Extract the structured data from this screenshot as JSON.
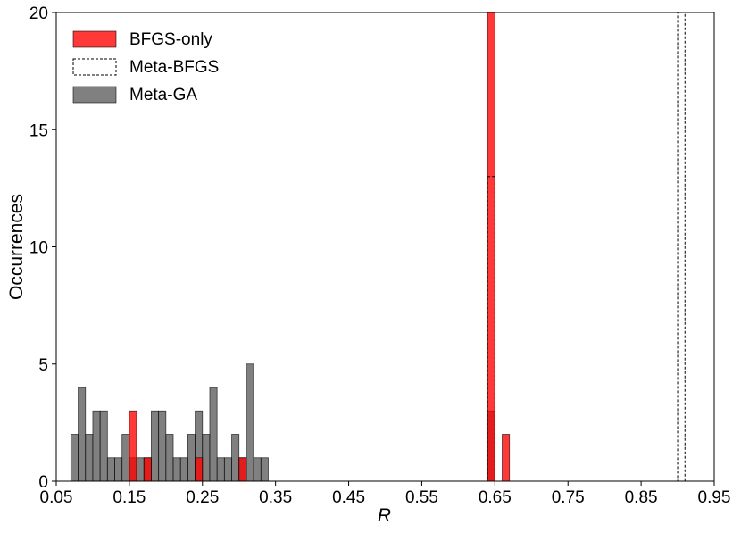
{
  "chart_data": {
    "type": "bar",
    "subtype": "histogram",
    "xlabel": "R",
    "ylabel": "Occurrences",
    "xlim": [
      0.05,
      0.95
    ],
    "ylim": [
      0,
      20
    ],
    "xticks": [
      "0.05",
      "0.15",
      "0.25",
      "0.35",
      "0.45",
      "0.55",
      "0.65",
      "0.75",
      "0.85",
      "0.95"
    ],
    "yticks": [
      "0",
      "5",
      "10",
      "15",
      "20"
    ],
    "bin_width": 0.01,
    "grid": false,
    "legend_position": "top-left",
    "series": [
      {
        "name": "BFGS-only",
        "style": "filled",
        "color": "#ff0000",
        "opacity": 0.78,
        "bins": [
          {
            "x": 0.15,
            "value": 3
          },
          {
            "x": 0.17,
            "value": 1
          },
          {
            "x": 0.24,
            "value": 1
          },
          {
            "x": 0.3,
            "value": 1
          },
          {
            "x": 0.64,
            "value": 20
          },
          {
            "x": 0.66,
            "value": 2
          }
        ]
      },
      {
        "name": "Meta-BFGS",
        "style": "dashed-outline",
        "color": "#000000",
        "bins": [
          {
            "x": 0.64,
            "value": 13
          },
          {
            "x": 0.9,
            "value": 20
          }
        ]
      },
      {
        "name": "Meta-GA",
        "style": "filled",
        "color": "#555555",
        "opacity": 0.75,
        "bins": [
          {
            "x": 0.07,
            "value": 2
          },
          {
            "x": 0.08,
            "value": 4
          },
          {
            "x": 0.09,
            "value": 2
          },
          {
            "x": 0.1,
            "value": 3
          },
          {
            "x": 0.11,
            "value": 3
          },
          {
            "x": 0.12,
            "value": 1
          },
          {
            "x": 0.13,
            "value": 1
          },
          {
            "x": 0.14,
            "value": 2
          },
          {
            "x": 0.15,
            "value": 1
          },
          {
            "x": 0.16,
            "value": 1
          },
          {
            "x": 0.17,
            "value": 1
          },
          {
            "x": 0.18,
            "value": 3
          },
          {
            "x": 0.19,
            "value": 3
          },
          {
            "x": 0.2,
            "value": 2
          },
          {
            "x": 0.21,
            "value": 1
          },
          {
            "x": 0.22,
            "value": 1
          },
          {
            "x": 0.23,
            "value": 2
          },
          {
            "x": 0.24,
            "value": 3
          },
          {
            "x": 0.25,
            "value": 2
          },
          {
            "x": 0.26,
            "value": 4
          },
          {
            "x": 0.27,
            "value": 1
          },
          {
            "x": 0.28,
            "value": 1
          },
          {
            "x": 0.29,
            "value": 2
          },
          {
            "x": 0.3,
            "value": 1
          },
          {
            "x": 0.31,
            "value": 5
          },
          {
            "x": 0.32,
            "value": 1
          },
          {
            "x": 0.33,
            "value": 1
          },
          {
            "x": 0.64,
            "value": 3
          }
        ]
      }
    ]
  }
}
